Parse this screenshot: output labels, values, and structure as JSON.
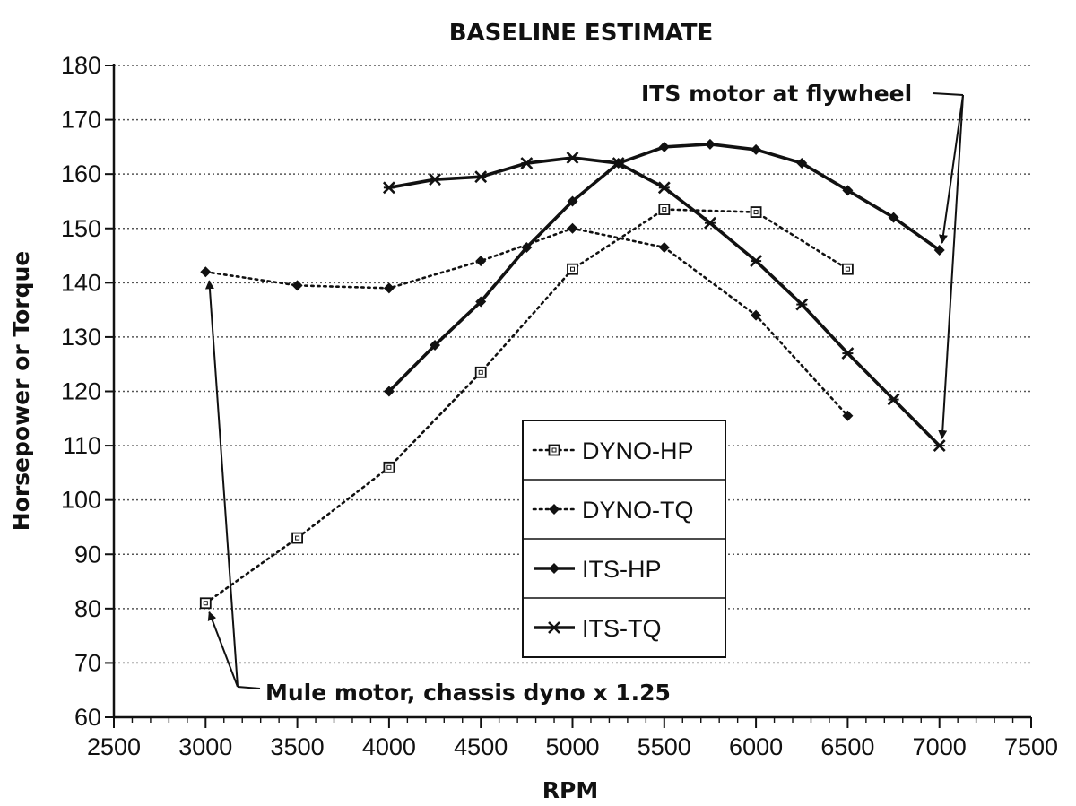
{
  "chart_data": {
    "type": "line",
    "title": "BASELINE ESTIMATE",
    "xlabel": "RPM",
    "ylabel": "Horsepower or Torque",
    "xlim": [
      2500,
      7500
    ],
    "ylim": [
      60,
      180
    ],
    "x_ticks": [
      2500,
      3000,
      3500,
      4000,
      4500,
      5000,
      5500,
      6000,
      6500,
      7000,
      7500
    ],
    "y_ticks": [
      60,
      70,
      80,
      90,
      100,
      110,
      120,
      130,
      140,
      150,
      160,
      170,
      180
    ],
    "grid": "horizontal dotted",
    "legend_position": "center",
    "series": [
      {
        "name": "DYNO-HP",
        "style": "dotted",
        "marker": "square",
        "x": [
          3000,
          3500,
          4000,
          4500,
          5000,
          5500,
          6000,
          6500
        ],
        "y": [
          81,
          93,
          106,
          123.5,
          142.5,
          153.5,
          153,
          142.5
        ]
      },
      {
        "name": "DYNO-TQ",
        "style": "dotted",
        "marker": "diamond",
        "x": [
          3000,
          3500,
          4000,
          4500,
          5000,
          5500,
          6000,
          6500
        ],
        "y": [
          142,
          139.5,
          139,
          144,
          150,
          146.5,
          134,
          115.5
        ]
      },
      {
        "name": "ITS-HP",
        "style": "solid",
        "marker": "diamond",
        "x": [
          4000,
          4250,
          4500,
          4750,
          5000,
          5250,
          5500,
          5750,
          6000,
          6250,
          6500,
          6750,
          7000
        ],
        "y": [
          120,
          128.5,
          136.5,
          146.5,
          155,
          162,
          165,
          165.5,
          164.5,
          162,
          157,
          152,
          146
        ]
      },
      {
        "name": "ITS-TQ",
        "style": "solid",
        "marker": "cross",
        "x": [
          4000,
          4250,
          4500,
          4750,
          5000,
          5250,
          5500,
          5750,
          6000,
          6250,
          6500,
          6750,
          7000
        ],
        "y": [
          157.5,
          159,
          159.5,
          162,
          163,
          162,
          157.5,
          151,
          144,
          136,
          127,
          118.5,
          110
        ]
      }
    ],
    "annotations": [
      {
        "text": "ITS motor at flywheel",
        "points_to": [
          [
            7000,
            146
          ],
          [
            7000,
            110
          ]
        ]
      },
      {
        "text": "Mule motor, chassis dyno x 1.25",
        "points_to": [
          [
            3000,
            81
          ],
          [
            3000,
            142
          ]
        ]
      }
    ]
  }
}
